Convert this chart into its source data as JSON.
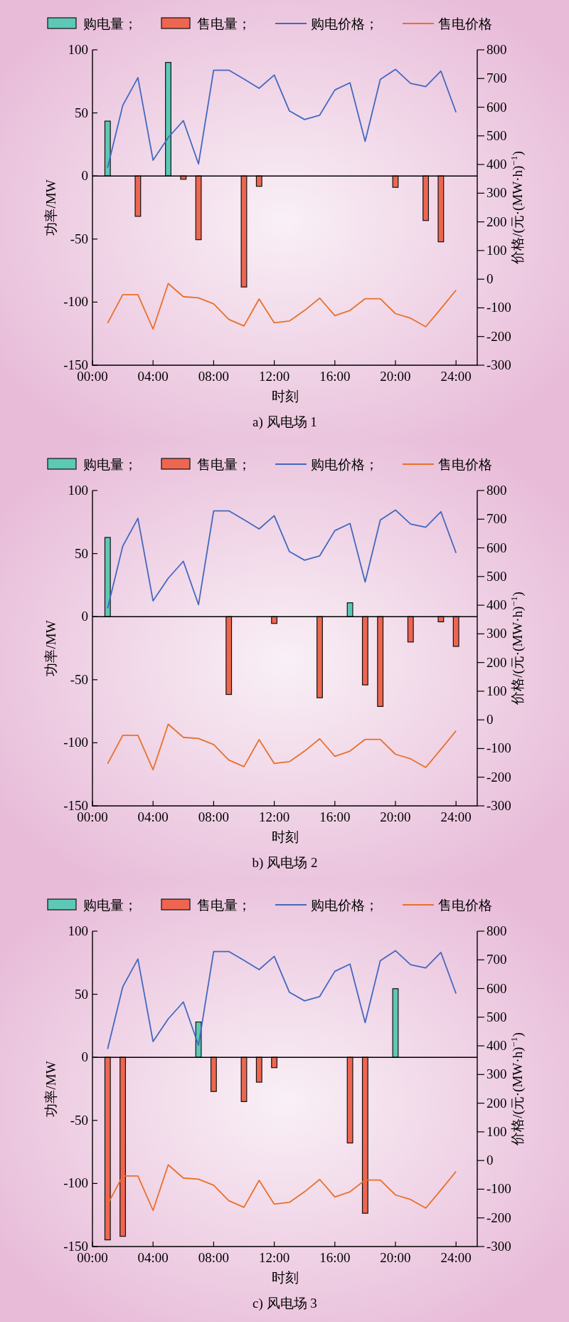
{
  "chart_data": [
    {
      "type": "bar",
      "title": "a) 风电场 1",
      "xlabel": "时刻",
      "ylabel": "功率/MW",
      "y2label": "价格/(元·(MW·h)$^{−1}$)",
      "legend": "top",
      "xlim": [
        0,
        25.4
      ],
      "xticks": [
        {
          "value": 0,
          "label": "00:00"
        },
        {
          "value": 4,
          "label": "04:00"
        },
        {
          "value": 8,
          "label": "08:00"
        },
        {
          "value": 12,
          "label": "12:00"
        },
        {
          "value": 16,
          "label": "16:00"
        },
        {
          "value": 20,
          "label": "20:00"
        },
        {
          "value": 24,
          "label": "24:00"
        }
      ],
      "ylim": [
        -150,
        100
      ],
      "yticks": [
        -150,
        -100,
        -50,
        0,
        50,
        100
      ],
      "y2lim": [
        -300,
        800
      ],
      "y2ticks": [
        -300,
        -200,
        -100,
        0,
        100,
        200,
        300,
        400,
        500,
        600,
        700,
        800
      ],
      "series": [
        {
          "name": "购电量；",
          "type": "bar",
          "color": "#5cc8b6",
          "x": [
            1,
            5
          ],
          "values": [
            43.5,
            90
          ]
        },
        {
          "name": "售电量；",
          "type": "bar",
          "color": "#ee6650",
          "x": [
            3,
            6,
            7,
            10,
            11,
            20,
            22,
            23
          ],
          "values": [
            -32,
            -2.6,
            -50.5,
            -88,
            -8.2,
            -9,
            -35.3,
            -52.2
          ]
        },
        {
          "name": "购电价格；",
          "type": "line",
          "axis": "y2",
          "color": "#4468bf",
          "x": [
            1,
            2,
            3,
            4,
            5,
            6,
            7,
            8,
            9,
            10,
            11,
            12,
            13,
            14,
            15,
            16,
            17,
            18,
            19,
            20,
            21,
            22,
            23,
            24
          ],
          "values": [
            389,
            606,
            703,
            415,
            494,
            553,
            402,
            729,
            729,
            698,
            666,
            712,
            587,
            557,
            572,
            660,
            685,
            481,
            697,
            732,
            683,
            672,
            726,
            582
          ]
        },
        {
          "name": "售电价格",
          "type": "line",
          "axis": "y2",
          "color": "#e8702a",
          "x": [
            1,
            2,
            3,
            4,
            5,
            6,
            7,
            8,
            9,
            10,
            11,
            12,
            13,
            14,
            15,
            16,
            17,
            18,
            19,
            20,
            21,
            22,
            23,
            24
          ],
          "values": [
            -153,
            -54,
            -54,
            -174,
            -15,
            -61,
            -65,
            -86,
            -140,
            -163,
            -69,
            -152,
            -146,
            -109,
            -66,
            -127,
            -109,
            -68,
            -68,
            -120,
            -136,
            -166,
            -103,
            -38
          ]
        }
      ]
    },
    {
      "type": "bar",
      "title": "b) 风电场 2",
      "xlabel": "时刻",
      "ylabel": "功率/MW",
      "y2label": "价格/(元·(MW·h)$^{−1}$)",
      "legend": "top",
      "xlim": [
        0,
        25.4
      ],
      "xticks": [
        {
          "value": 0,
          "label": "00:00"
        },
        {
          "value": 4,
          "label": "04:00"
        },
        {
          "value": 8,
          "label": "08:00"
        },
        {
          "value": 12,
          "label": "12:00"
        },
        {
          "value": 16,
          "label": "16:00"
        },
        {
          "value": 20,
          "label": "20:00"
        },
        {
          "value": 24,
          "label": "24:00"
        }
      ],
      "ylim": [
        -150,
        100
      ],
      "yticks": [
        -150,
        -100,
        -50,
        0,
        50,
        100
      ],
      "y2lim": [
        -300,
        800
      ],
      "y2ticks": [
        -300,
        -200,
        -100,
        0,
        100,
        200,
        300,
        400,
        500,
        600,
        700,
        800
      ],
      "series": [
        {
          "name": "购电量；",
          "type": "bar",
          "color": "#5cc8b6",
          "x": [
            1,
            17
          ],
          "values": [
            62.8,
            11
          ]
        },
        {
          "name": "售电量；",
          "type": "bar",
          "color": "#ee6650",
          "x": [
            9,
            12,
            15,
            18,
            19,
            21,
            23,
            24
          ],
          "values": [
            -61.7,
            -5.4,
            -64.3,
            -54.1,
            -71.2,
            -20.1,
            -4.1,
            -23.6
          ]
        },
        {
          "name": "购电价格；",
          "type": "line",
          "axis": "y2",
          "color": "#4468bf",
          "x": [
            1,
            2,
            3,
            4,
            5,
            6,
            7,
            8,
            9,
            10,
            11,
            12,
            13,
            14,
            15,
            16,
            17,
            18,
            19,
            20,
            21,
            22,
            23,
            24
          ],
          "values": [
            389,
            606,
            703,
            415,
            494,
            553,
            402,
            729,
            729,
            698,
            666,
            712,
            587,
            557,
            572,
            660,
            685,
            481,
            697,
            732,
            683,
            672,
            726,
            582
          ]
        },
        {
          "name": "售电价格",
          "type": "line",
          "axis": "y2",
          "color": "#e8702a",
          "x": [
            1,
            2,
            3,
            4,
            5,
            6,
            7,
            8,
            9,
            10,
            11,
            12,
            13,
            14,
            15,
            16,
            17,
            18,
            19,
            20,
            21,
            22,
            23,
            24
          ],
          "values": [
            -153,
            -54,
            -54,
            -174,
            -15,
            -61,
            -65,
            -86,
            -140,
            -163,
            -69,
            -152,
            -146,
            -109,
            -66,
            -127,
            -109,
            -68,
            -68,
            -120,
            -136,
            -166,
            -103,
            -38
          ]
        }
      ]
    },
    {
      "type": "bar",
      "title": "c) 风电场 3",
      "xlabel": "时刻",
      "ylabel": "功率/MW",
      "y2label": "价格/(元·(MW·h)$^{−1}$)",
      "legend": "top",
      "xlim": [
        0,
        25.4
      ],
      "xticks": [
        {
          "value": 0,
          "label": "00:00"
        },
        {
          "value": 4,
          "label": "04:00"
        },
        {
          "value": 8,
          "label": "08:00"
        },
        {
          "value": 12,
          "label": "12:00"
        },
        {
          "value": 16,
          "label": "16:00"
        },
        {
          "value": 20,
          "label": "20:00"
        },
        {
          "value": 24,
          "label": "24:00"
        }
      ],
      "ylim": [
        -150,
        100
      ],
      "yticks": [
        -150,
        -100,
        -50,
        0,
        50,
        100
      ],
      "y2lim": [
        -300,
        800
      ],
      "y2ticks": [
        -300,
        -200,
        -100,
        0,
        100,
        200,
        300,
        400,
        500,
        600,
        700,
        800
      ],
      "series": [
        {
          "name": "购电量；",
          "type": "bar",
          "color": "#5cc8b6",
          "x": [
            7,
            20
          ],
          "values": [
            28,
            54.4
          ]
        },
        {
          "name": "售电量；",
          "type": "bar",
          "color": "#ee6650",
          "x": [
            1,
            2,
            8,
            10,
            11,
            12,
            17,
            18
          ],
          "values": [
            -144.7,
            -141.9,
            -27.1,
            -35.1,
            -19.7,
            -8.2,
            -67.9,
            -123.6
          ]
        },
        {
          "name": "购电价格；",
          "type": "line",
          "axis": "y2",
          "color": "#4468bf",
          "x": [
            1,
            2,
            3,
            4,
            5,
            6,
            7,
            8,
            9,
            10,
            11,
            12,
            13,
            14,
            15,
            16,
            17,
            18,
            19,
            20,
            21,
            22,
            23,
            24
          ],
          "values": [
            389,
            606,
            703,
            415,
            494,
            553,
            402,
            729,
            729,
            698,
            666,
            712,
            587,
            557,
            572,
            660,
            685,
            481,
            697,
            732,
            683,
            672,
            726,
            582
          ]
        },
        {
          "name": "售电价格",
          "type": "line",
          "axis": "y2",
          "color": "#e8702a",
          "x": [
            1,
            2,
            3,
            4,
            5,
            6,
            7,
            8,
            9,
            10,
            11,
            12,
            13,
            14,
            15,
            16,
            17,
            18,
            19,
            20,
            21,
            22,
            23,
            24
          ],
          "values": [
            -153,
            -54,
            -54,
            -174,
            -15,
            -61,
            -65,
            -86,
            -140,
            -163,
            -69,
            -152,
            -146,
            -109,
            -66,
            -127,
            -109,
            -68,
            -68,
            -120,
            -136,
            -166,
            -103,
            -38
          ]
        }
      ]
    }
  ]
}
